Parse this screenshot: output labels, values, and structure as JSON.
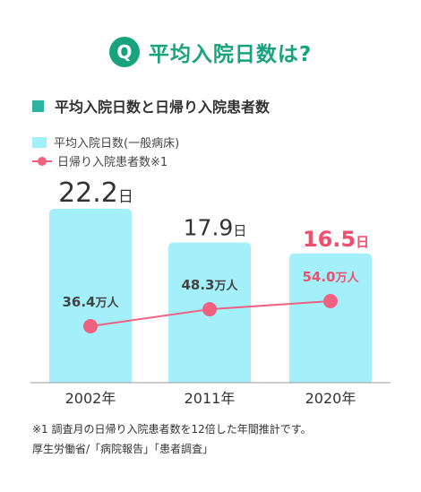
{
  "header": {
    "badge": "Q",
    "title": "平均入院日数は?"
  },
  "subheading": "平均入院日数と日帰り入院患者数",
  "legend": {
    "bar_label": "平均入院日数(一般病床)",
    "line_label": "日帰り入院患者数※1"
  },
  "colors": {
    "accent": "#17a37c",
    "subhead_mark": "#2bb5a0",
    "bar": "#a4f0fa",
    "line": "#f06080",
    "highlight": "#f05070",
    "text": "#333333"
  },
  "chart_data": {
    "type": "bar",
    "categories": [
      "2002年",
      "2011年",
      "2020年"
    ],
    "series": [
      {
        "name": "平均入院日数(一般病床)",
        "type": "bar",
        "values": [
          22.2,
          17.9,
          16.5
        ],
        "unit": "日",
        "labels": [
          "22.2",
          "17.9",
          "16.5"
        ]
      },
      {
        "name": "日帰り入院患者数※1",
        "type": "line",
        "values": [
          36.4,
          48.3,
          54.0
        ],
        "unit": "万人",
        "labels": [
          "36.4",
          "48.3",
          "54.0"
        ]
      }
    ],
    "highlight_index": 2,
    "xlabel": "",
    "ylabel": ""
  },
  "footnotes": [
    "※1 調査月の日帰り入院患者数を12倍した年間推計です。",
    "厚生労働省/「病院報告」「患者調査」"
  ]
}
